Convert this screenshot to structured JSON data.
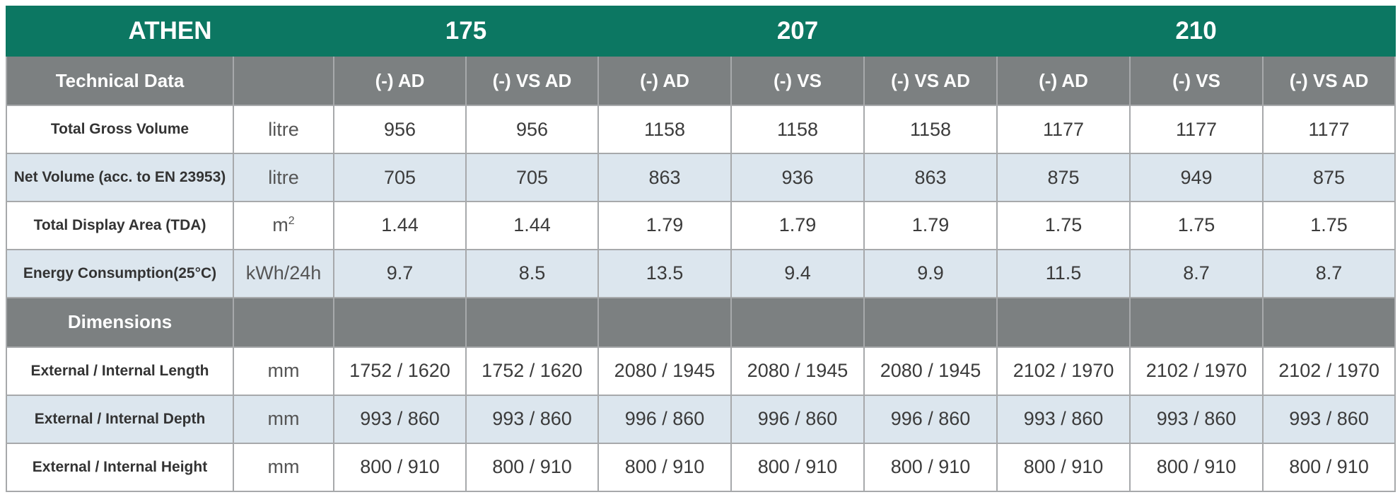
{
  "table": {
    "brand": "ATHEN",
    "groups": [
      "175",
      "207",
      "210"
    ],
    "technical_header": "Technical Data",
    "dimensions_header": "Dimensions",
    "variants": [
      "(-) AD",
      "(-) VS AD",
      "(-) AD",
      "(-) VS",
      "(-) VS AD",
      "(-) AD",
      "(-) VS",
      "(-) VS AD"
    ],
    "technical_rows": [
      {
        "label": "Total Gross Volume",
        "unit": "litre",
        "values": [
          "956",
          "956",
          "1158",
          "1158",
          "1158",
          "1177",
          "1177",
          "1177"
        ]
      },
      {
        "label": "Net Volume (acc. to EN 23953)",
        "unit": "litre",
        "values": [
          "705",
          "705",
          "863",
          "936",
          "863",
          "875",
          "949",
          "875"
        ]
      },
      {
        "label": "Total Display Area (TDA)",
        "unit": "m",
        "unit_sup": "2",
        "values": [
          "1.44",
          "1.44",
          "1.79",
          "1.79",
          "1.79",
          "1.75",
          "1.75",
          "1.75"
        ]
      },
      {
        "label": "Energy Consumption(25°C)",
        "unit": "kWh/24h",
        "values": [
          "9.7",
          "8.5",
          "13.5",
          "9.4",
          "9.9",
          "11.5",
          "8.7",
          "8.7"
        ]
      }
    ],
    "dimension_rows": [
      {
        "label": "External / Internal Length",
        "unit": "mm",
        "values": [
          "1752 / 1620",
          "1752 / 1620",
          "2080 / 1945",
          "2080 / 1945",
          "2080 / 1945",
          "2102 / 1970",
          "2102 / 1970",
          "2102 / 1970"
        ]
      },
      {
        "label": "External / Internal Depth",
        "unit": "mm",
        "values": [
          "993 / 860",
          "993 / 860",
          "996 / 860",
          "996 / 860",
          "996 / 860",
          "993 / 860",
          "993 / 860",
          "993 / 860"
        ]
      },
      {
        "label": "External / Internal Height",
        "unit": "mm",
        "values": [
          "800 / 910",
          "800 / 910",
          "800 / 910",
          "800 / 910",
          "800 / 910",
          "800 / 910",
          "800 / 910",
          "800 / 910"
        ]
      }
    ],
    "colors": {
      "brand_green": "#0c7762",
      "header_gray": "#7c8081",
      "stripe_blue": "#dce6ee"
    }
  }
}
